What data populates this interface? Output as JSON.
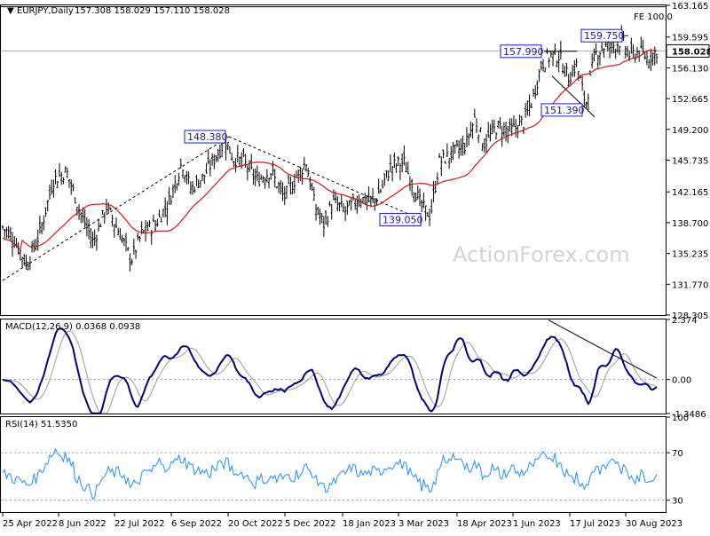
{
  "chart_data": [
    {
      "type": "candlestick",
      "title": "EURJPY,Daily",
      "ohlc_text": "157.308 158.029 157.110 158.028",
      "current_price_label": "158.028",
      "fe_label": "FE 100.0",
      "watermark": "ActionForex.com",
      "y_ticks": [
        "163.165",
        "159.595",
        "156.130",
        "152.665",
        "149.200",
        "145.735",
        "142.165",
        "138.700",
        "135.235",
        "131.770",
        "128.305"
      ],
      "ylim": [
        128.305,
        163.165
      ],
      "x_ticks": [
        "25 Apr 2022",
        "8 Jun 2022",
        "22 Jul 2022",
        "6 Sep 2022",
        "20 Oct 2022",
        "5 Dec 2022",
        "18 Jan 2023",
        "3 Mar 2023",
        "18 Apr 2023",
        "1 Jun 2023",
        "17 Jul 2023",
        "30 Aug 2023"
      ],
      "annotations": [
        {
          "label": "148.380",
          "value": 148.38
        },
        {
          "label": "139.050",
          "value": 139.05
        },
        {
          "label": "157.990",
          "value": 157.99
        },
        {
          "label": "159.750",
          "value": 159.75
        },
        {
          "label": "151.390",
          "value": 151.39
        }
      ],
      "series": [
        {
          "name": "EURJPY",
          "color": "#000000"
        },
        {
          "name": "MA",
          "color": "#d0181c"
        }
      ]
    },
    {
      "type": "line",
      "title": "MACD(12,26,9) 0.0368 0.0938",
      "y_ticks": [
        "2.374",
        "0.00",
        "-1.3486"
      ],
      "ylim": [
        -1.3486,
        2.374
      ],
      "series": [
        {
          "name": "MACD",
          "color": "#00007f"
        },
        {
          "name": "Signal",
          "color": "#9a9a9a"
        }
      ]
    },
    {
      "type": "line",
      "title": "RSI(14) 51.5350",
      "y_ticks": [
        "100",
        "70",
        "30"
      ],
      "ylim": [
        20,
        100
      ],
      "series": [
        {
          "name": "RSI",
          "color": "#1e90ff"
        }
      ]
    }
  ]
}
